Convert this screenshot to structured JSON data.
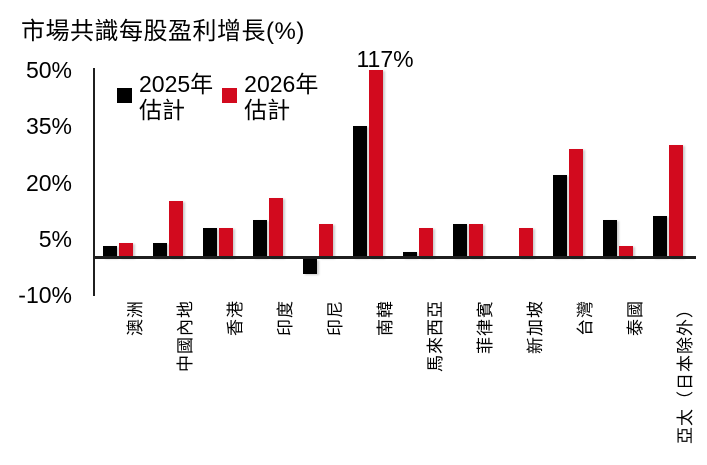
{
  "chart_data": {
    "type": "bar",
    "title": "市場共識每股盈利增長(%)",
    "categories": [
      "澳洲",
      "中國內地",
      "香港",
      "印度",
      "印尼",
      "南韓",
      "馬來西亞",
      "菲律賓",
      "新加坡",
      "台灣",
      "泰國",
      "亞太（日本除外）"
    ],
    "series": [
      {
        "key": "2025",
        "name": "2025年估計",
        "legend_lines": [
          "2025年",
          "估計"
        ],
        "color": "#000000",
        "values": [
          3,
          4,
          8,
          10,
          -4,
          35,
          1.5,
          9,
          0,
          22,
          10,
          11
        ]
      },
      {
        "key": "2026",
        "name": "2026年估計",
        "legend_lines": [
          "2026年",
          "估計"
        ],
        "color": "#D20A1E",
        "values": [
          4,
          15,
          8,
          16,
          9,
          117,
          8,
          9,
          8,
          29,
          3,
          30
        ]
      }
    ],
    "annotations": [
      {
        "text": "117%",
        "series": 1,
        "category_index": 5
      }
    ],
    "yticks": [
      "50%",
      "35%",
      "20%",
      "5%",
      "-10%"
    ],
    "ytick_values": [
      50,
      35,
      20,
      5,
      -10
    ],
    "ylim": [
      -10,
      50
    ],
    "clip_max": 50,
    "grid": false,
    "legend_position": "top-left-inside",
    "axis_color": "#1F1F1F",
    "background_color": "#FFFFFF"
  }
}
